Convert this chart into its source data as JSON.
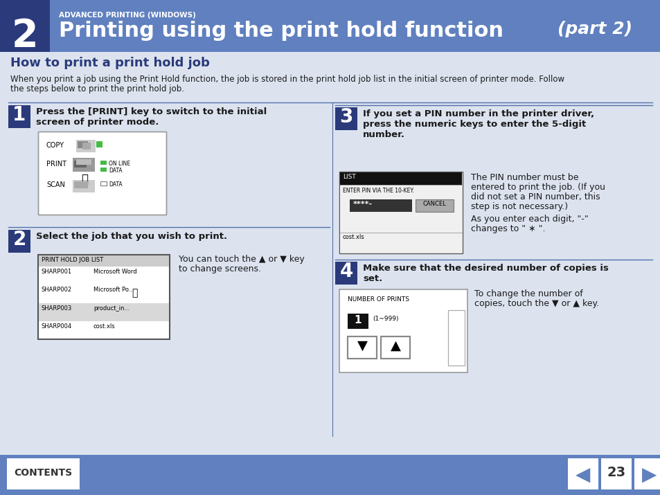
{
  "bg_color": "#dce3ef",
  "header_bg": "#6080bf",
  "header_dark": "#2a3a7a",
  "header_title": "Printing using the print hold function",
  "header_subtitle": "ADVANCED PRINTING (WINDOWS)",
  "header_part": "(part 2)",
  "section_title": "How to print a print hold job",
  "intro_line1": "When you print a job using the Print Hold function, the job is stored in the print hold job list in the initial screen of printer mode. Follow",
  "intro_line2": "the steps below to print the print hold job.",
  "footer_bg": "#6080bf",
  "footer_contents": "CONTENTS",
  "footer_page": "23",
  "step1_title": "Press the [PRINT] key to switch to the initial\nscreen of printer mode.",
  "step2_title": "Select the job that you wish to print.",
  "step2_text_line1": "You can touch the ▲ or ▼ key",
  "step2_text_line2": "to change screens.",
  "step3_title": "If you set a PIN number in the printer driver,\npress the numeric keys to enter the 5-digit\nnumber.",
  "step3_text1_line1": "The PIN number must be",
  "step3_text1_line2": "entered to print the job. (If you",
  "step3_text1_line3": "did not set a PIN number, this",
  "step3_text1_line4": "step is not necessary.)",
  "step3_text2_line1": "As you enter each digit, \"-\"",
  "step3_text2_line2": "changes to \" ∗ \".",
  "step4_title": "Make sure that the desired number of copies is\nset.",
  "step4_text_line1": "To change the number of",
  "step4_text_line2": "copies, touch the ▼ or ▲ key.",
  "divider_color": "#5070aa",
  "step_bg": "#2a3a7a",
  "title_color": "#2a3a7a",
  "body_text_color": "#1a1a1a",
  "rows": [
    [
      "SHARP001",
      "Microsoft Word"
    ],
    [
      "SHARP002",
      "Microsoft Po..."
    ],
    [
      "SHARP003",
      "product_in..."
    ],
    [
      "SHARP004",
      "cost.xls"
    ]
  ]
}
